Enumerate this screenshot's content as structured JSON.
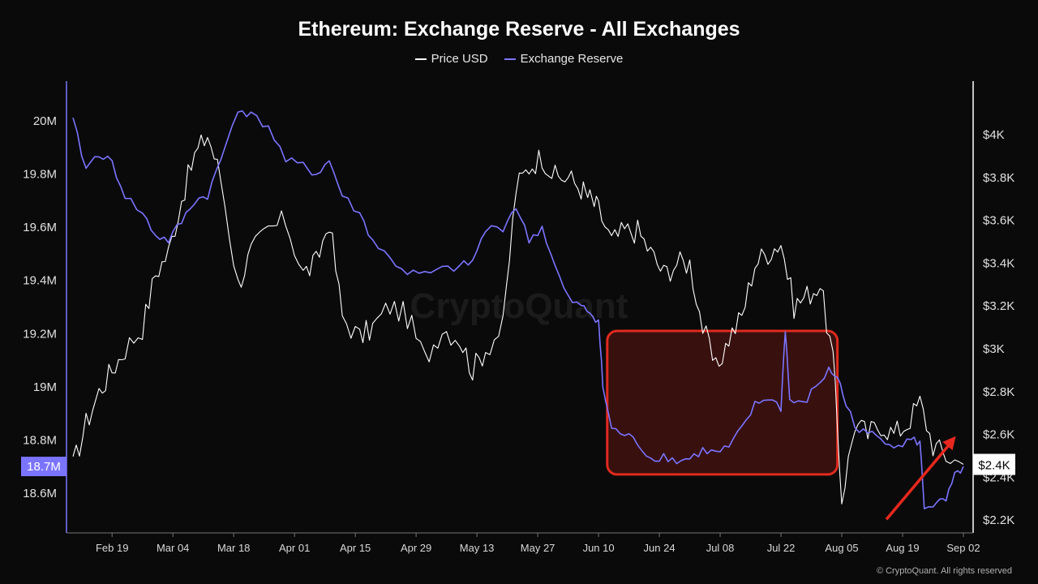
{
  "chart_data": {
    "type": "line",
    "title": "Ethereum: Exchange Reserve - All Exchanges",
    "legend": [
      "Price USD",
      "Exchange Reserve"
    ],
    "legend_position": "top-center",
    "watermark": "CryptoQuant",
    "copyright": "© CryptoQuant. All rights reserved",
    "colors": {
      "price": "#ffffff",
      "reserve": "#7b74ff",
      "highlight_box": "#e02a1e",
      "arrow": "#e8281e"
    },
    "x_labels": [
      "Feb 19",
      "Mar 04",
      "Mar 18",
      "Apr 01",
      "Apr 15",
      "Apr 29",
      "May 13",
      "May 27",
      "Jun 10",
      "Jun 24",
      "Jul 08",
      "Jul 22",
      "Aug 05",
      "Aug 19",
      "Sep 02"
    ],
    "x_range": [
      "2024-02-10",
      "2024-09-02"
    ],
    "left_axis": {
      "label": "",
      "ticks": [
        "18.6M",
        "18.8M",
        "19M",
        "19.2M",
        "19.4M",
        "19.6M",
        "19.8M",
        "20M"
      ],
      "ylim": [
        18.45,
        20.15
      ],
      "current_label": "18.7M",
      "current_value": 18.7
    },
    "right_axis": {
      "label": "",
      "ticks": [
        "$2.2K",
        "$2.4K",
        "$2.6K",
        "$2.8K",
        "$3K",
        "$3.2K",
        "$3.4K",
        "$3.6K",
        "$3.8K",
        "$4K"
      ],
      "ylim": [
        2140,
        4250
      ],
      "current_label": "$2.4K",
      "current_value": 2460
    },
    "series": [
      {
        "name": "Exchange Reserve",
        "axis": "left",
        "points": [
          [
            "2024-02-10",
            20.0
          ],
          [
            "2024-02-13",
            19.82
          ],
          [
            "2024-02-16",
            19.88
          ],
          [
            "2024-02-19",
            19.84
          ],
          [
            "2024-02-22",
            19.72
          ],
          [
            "2024-02-26",
            19.65
          ],
          [
            "2024-02-29",
            19.57
          ],
          [
            "2024-03-03",
            19.55
          ],
          [
            "2024-03-06",
            19.62
          ],
          [
            "2024-03-09",
            19.7
          ],
          [
            "2024-03-12",
            19.72
          ],
          [
            "2024-03-15",
            19.85
          ],
          [
            "2024-03-19",
            20.05
          ],
          [
            "2024-03-22",
            20.02
          ],
          [
            "2024-03-26",
            19.98
          ],
          [
            "2024-03-30",
            19.85
          ],
          [
            "2024-04-03",
            19.83
          ],
          [
            "2024-04-06",
            19.8
          ],
          [
            "2024-04-09",
            19.85
          ],
          [
            "2024-04-12",
            19.72
          ],
          [
            "2024-04-16",
            19.65
          ],
          [
            "2024-04-19",
            19.55
          ],
          [
            "2024-04-23",
            19.48
          ],
          [
            "2024-04-27",
            19.43
          ],
          [
            "2024-05-01",
            19.42
          ],
          [
            "2024-05-05",
            19.44
          ],
          [
            "2024-05-09",
            19.45
          ],
          [
            "2024-05-12",
            19.47
          ],
          [
            "2024-05-15",
            19.59
          ],
          [
            "2024-05-19",
            19.6
          ],
          [
            "2024-05-22",
            19.68
          ],
          [
            "2024-05-25",
            19.55
          ],
          [
            "2024-05-28",
            19.6
          ],
          [
            "2024-05-31",
            19.45
          ],
          [
            "2024-06-03",
            19.33
          ],
          [
            "2024-06-06",
            19.3
          ],
          [
            "2024-06-08",
            19.28
          ],
          [
            "2024-06-10",
            19.25
          ],
          [
            "2024-06-11",
            19.0
          ],
          [
            "2024-06-13",
            18.84
          ],
          [
            "2024-06-16",
            18.82
          ],
          [
            "2024-06-19",
            18.79
          ],
          [
            "2024-06-22",
            18.73
          ],
          [
            "2024-06-25",
            18.74
          ],
          [
            "2024-06-28",
            18.72
          ],
          [
            "2024-07-01",
            18.73
          ],
          [
            "2024-07-04",
            18.76
          ],
          [
            "2024-07-07",
            18.75
          ],
          [
            "2024-07-10",
            18.77
          ],
          [
            "2024-07-13",
            18.84
          ],
          [
            "2024-07-16",
            18.93
          ],
          [
            "2024-07-19",
            18.96
          ],
          [
            "2024-07-22",
            18.92
          ],
          [
            "2024-07-23",
            19.22
          ],
          [
            "2024-07-24",
            18.95
          ],
          [
            "2024-07-27",
            18.93
          ],
          [
            "2024-07-30",
            19.0
          ],
          [
            "2024-08-02",
            19.06
          ],
          [
            "2024-08-04",
            19.04
          ],
          [
            "2024-08-06",
            18.93
          ],
          [
            "2024-08-09",
            18.83
          ],
          [
            "2024-08-12",
            18.82
          ],
          [
            "2024-08-15",
            18.8
          ],
          [
            "2024-08-18",
            18.78
          ],
          [
            "2024-08-21",
            18.8
          ],
          [
            "2024-08-23",
            18.79
          ],
          [
            "2024-08-24",
            18.55
          ],
          [
            "2024-08-27",
            18.56
          ],
          [
            "2024-08-29",
            18.57
          ],
          [
            "2024-08-31",
            18.66
          ],
          [
            "2024-09-02",
            18.7
          ]
        ]
      },
      {
        "name": "Price USD",
        "axis": "right",
        "points": [
          [
            "2024-02-10",
            2450
          ],
          [
            "2024-02-13",
            2650
          ],
          [
            "2024-02-16",
            2800
          ],
          [
            "2024-02-19",
            2900
          ],
          [
            "2024-02-22",
            3000
          ],
          [
            "2024-02-26",
            3100
          ],
          [
            "2024-02-29",
            3350
          ],
          [
            "2024-03-03",
            3450
          ],
          [
            "2024-03-06",
            3700
          ],
          [
            "2024-03-09",
            3900
          ],
          [
            "2024-03-12",
            4000
          ],
          [
            "2024-03-15",
            3800
          ],
          [
            "2024-03-19",
            3300
          ],
          [
            "2024-03-22",
            3450
          ],
          [
            "2024-03-26",
            3550
          ],
          [
            "2024-03-30",
            3600
          ],
          [
            "2024-04-03",
            3350
          ],
          [
            "2024-04-06",
            3400
          ],
          [
            "2024-04-09",
            3600
          ],
          [
            "2024-04-12",
            3150
          ],
          [
            "2024-04-16",
            3050
          ],
          [
            "2024-04-19",
            3100
          ],
          [
            "2024-04-23",
            3200
          ],
          [
            "2024-04-27",
            3150
          ],
          [
            "2024-05-01",
            2950
          ],
          [
            "2024-05-05",
            3100
          ],
          [
            "2024-05-09",
            3050
          ],
          [
            "2024-05-12",
            2900
          ],
          [
            "2024-05-15",
            3000
          ],
          [
            "2024-05-19",
            3100
          ],
          [
            "2024-05-22",
            3750
          ],
          [
            "2024-05-25",
            3850
          ],
          [
            "2024-05-28",
            3900
          ],
          [
            "2024-05-31",
            3800
          ],
          [
            "2024-06-03",
            3800
          ],
          [
            "2024-06-06",
            3750
          ],
          [
            "2024-06-08",
            3700
          ],
          [
            "2024-06-10",
            3650
          ],
          [
            "2024-06-13",
            3500
          ],
          [
            "2024-06-16",
            3550
          ],
          [
            "2024-06-19",
            3550
          ],
          [
            "2024-06-22",
            3450
          ],
          [
            "2024-06-25",
            3350
          ],
          [
            "2024-06-28",
            3400
          ],
          [
            "2024-07-01",
            3400
          ],
          [
            "2024-07-04",
            3100
          ],
          [
            "2024-07-07",
            2900
          ],
          [
            "2024-07-10",
            3050
          ],
          [
            "2024-07-13",
            3150
          ],
          [
            "2024-07-16",
            3400
          ],
          [
            "2024-07-19",
            3450
          ],
          [
            "2024-07-22",
            3500
          ],
          [
            "2024-07-25",
            3200
          ],
          [
            "2024-07-28",
            3250
          ],
          [
            "2024-07-31",
            3300
          ],
          [
            "2024-08-03",
            2950
          ],
          [
            "2024-08-05",
            2300
          ],
          [
            "2024-08-08",
            2650
          ],
          [
            "2024-08-11",
            2600
          ],
          [
            "2024-08-14",
            2650
          ],
          [
            "2024-08-17",
            2600
          ],
          [
            "2024-08-20",
            2650
          ],
          [
            "2024-08-23",
            2750
          ],
          [
            "2024-08-26",
            2550
          ],
          [
            "2024-08-29",
            2500
          ],
          [
            "2024-09-02",
            2460
          ]
        ]
      }
    ],
    "annotations": [
      {
        "type": "highlight-box",
        "x_range": [
          "2024-06-12",
          "2024-08-04"
        ],
        "y_range_left": [
          18.67,
          19.21
        ]
      },
      {
        "type": "arrow",
        "from": [
          "2024-08-19",
          18.58
        ],
        "to": [
          "2024-09-01",
          18.82
        ]
      }
    ]
  }
}
